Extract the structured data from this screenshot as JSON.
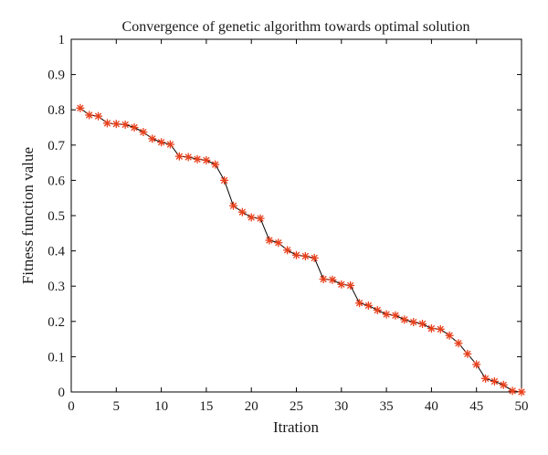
{
  "chart_data": {
    "type": "line",
    "title": "Convergence of genetic algorithm towards optimal solution",
    "xlabel": "Itration",
    "ylabel": "Fitness function value",
    "xlim": [
      0,
      50
    ],
    "ylim": [
      0,
      1
    ],
    "xticks": [
      0,
      5,
      10,
      15,
      20,
      25,
      30,
      35,
      40,
      45,
      50
    ],
    "yticks": [
      0,
      0.1,
      0.2,
      0.3,
      0.4,
      0.5,
      0.6,
      0.7,
      0.8,
      0.9,
      1
    ],
    "xtick_labels": [
      "0",
      "5",
      "10",
      "15",
      "20",
      "25",
      "30",
      "35",
      "40",
      "45",
      "50"
    ],
    "ytick_labels": [
      "0",
      "0.1",
      "0.2",
      "0.3",
      "0.4",
      "0.5",
      "0.6",
      "0.7",
      "0.8",
      "0.9",
      "1"
    ],
    "grid": false,
    "line_color": "#000000",
    "marker": "asterisk",
    "marker_color": "#e8401c",
    "x": [
      1,
      2,
      3,
      4,
      5,
      6,
      7,
      8,
      9,
      10,
      11,
      12,
      13,
      14,
      15,
      16,
      17,
      18,
      19,
      20,
      21,
      22,
      23,
      24,
      25,
      26,
      27,
      28,
      29,
      30,
      31,
      32,
      33,
      34,
      35,
      36,
      37,
      38,
      39,
      40,
      41,
      42,
      43,
      44,
      45,
      46,
      47,
      48,
      49,
      50
    ],
    "y": [
      0.805,
      0.785,
      0.782,
      0.762,
      0.76,
      0.758,
      0.75,
      0.737,
      0.718,
      0.708,
      0.702,
      0.668,
      0.666,
      0.66,
      0.657,
      0.645,
      0.6,
      0.528,
      0.51,
      0.495,
      0.492,
      0.43,
      0.423,
      0.402,
      0.388,
      0.385,
      0.38,
      0.32,
      0.318,
      0.305,
      0.302,
      0.252,
      0.245,
      0.232,
      0.22,
      0.217,
      0.205,
      0.198,
      0.193,
      0.18,
      0.178,
      0.16,
      0.138,
      0.108,
      0.078,
      0.038,
      0.03,
      0.02,
      0.003,
      0.0
    ]
  }
}
